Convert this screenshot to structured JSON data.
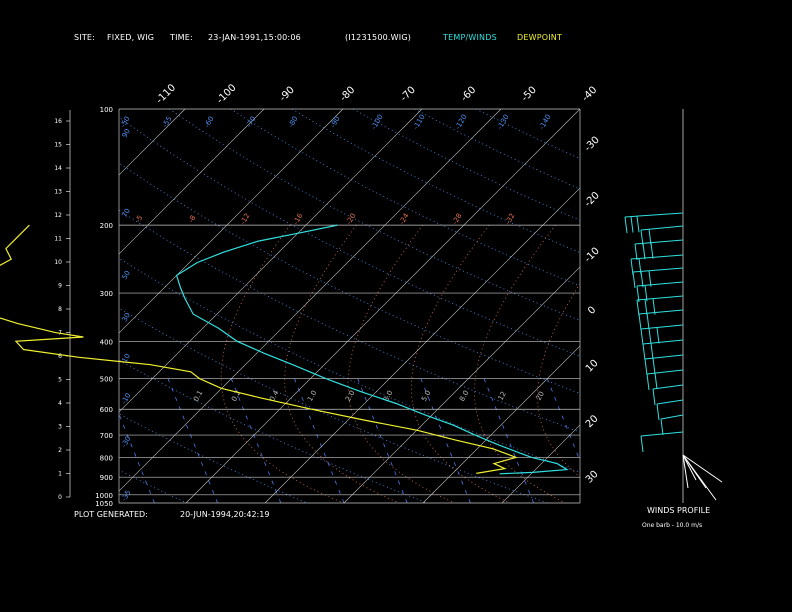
{
  "header": {
    "site_label": "SITE:",
    "site_value": "FIXED, WIG",
    "time_label": "TIME:",
    "time_value": "23-JAN-1991,15:00:06",
    "file": "(I1231500.WIG)",
    "legend_temp": "TEMP/WINDS",
    "legend_dew": "DEWPOINT"
  },
  "footer": {
    "generated_label": "PLOT GENERATED:",
    "generated_value": "20-JUN-1994,20:42:19",
    "winds_title": "WINDS PROFILE",
    "barb_note": "One barb - 10.0 m/s"
  },
  "colors": {
    "temp": "#30e0e0",
    "dew": "#f0f030",
    "grid": "#c8c8c8",
    "isotherm": "#c8c8c8",
    "mixing": "#4a78e8",
    "dry_adiabat": "#5090f0",
    "moist_adiabat": "#e07050"
  },
  "chart_data": {
    "type": "line",
    "pressure_levels": [
      "100",
      "200",
      "300",
      "400",
      "500",
      "600",
      "700",
      "800",
      "900",
      "1000",
      "1050"
    ],
    "pressure_values": [
      100,
      200,
      300,
      400,
      500,
      600,
      700,
      800,
      900,
      1000,
      1050
    ],
    "height_ticks": [
      "0",
      "1",
      "2",
      "3",
      "4",
      "5",
      "6",
      "7",
      "8",
      "9",
      "10",
      "11",
      "12",
      "13",
      "14",
      "15",
      "16"
    ],
    "isotherm_labels_top": [
      "-110",
      "-100",
      "-90",
      "-80",
      "-70",
      "-60",
      "-50",
      "-40"
    ],
    "isotherm_labels_right": [
      "-30",
      "-20",
      "-10",
      "0",
      "10",
      "20",
      "30"
    ],
    "isotherm_values": [
      -110,
      -100,
      -90,
      -80,
      -70,
      -60,
      -50,
      -40,
      -30,
      -20,
      -10,
      0,
      10,
      20,
      30
    ],
    "theta_labels": [
      {
        "text": "90",
        "p": 115
      },
      {
        "text": "70",
        "p": 185
      },
      {
        "text": "50",
        "p": 268
      },
      {
        "text": "30",
        "p": 345
      },
      {
        "text": "10",
        "p": 440
      },
      {
        "text": "-10",
        "p": 560
      },
      {
        "text": "-30",
        "p": 725
      },
      {
        "text": "-35",
        "p": 1000
      }
    ],
    "moist_labels_200": [
      "-5",
      "-8",
      "-12",
      "-16",
      "-20",
      "-24",
      "-28",
      "-32"
    ],
    "mixing_labels_550": [
      "0.1",
      "0.2",
      "0.4",
      "1.0",
      "2.0",
      "3.0",
      "5.0",
      "8.0",
      "12",
      "20"
    ],
    "top_labels_100": [
      "-50",
      "-55",
      "-60",
      "-70",
      "-80",
      "-90",
      "-100",
      "-110",
      "-120",
      "-130",
      "-140"
    ],
    "series": [
      {
        "name": "TEMP/WINDS",
        "points": [
          {
            "p": 200,
            "t": -56
          },
          {
            "p": 210,
            "t": -60
          },
          {
            "p": 220,
            "t": -64
          },
          {
            "p": 235,
            "t": -67
          },
          {
            "p": 250,
            "t": -69
          },
          {
            "p": 270,
            "t": -70
          },
          {
            "p": 290,
            "t": -68
          },
          {
            "p": 310,
            "t": -66
          },
          {
            "p": 340,
            "t": -63
          },
          {
            "p": 370,
            "t": -58
          },
          {
            "p": 400,
            "t": -54
          },
          {
            "p": 430,
            "t": -49
          },
          {
            "p": 460,
            "t": -44
          },
          {
            "p": 500,
            "t": -38
          },
          {
            "p": 540,
            "t": -32
          },
          {
            "p": 580,
            "t": -26
          },
          {
            "p": 620,
            "t": -21
          },
          {
            "p": 660,
            "t": -16
          },
          {
            "p": 700,
            "t": -12
          },
          {
            "p": 740,
            "t": -8
          },
          {
            "p": 780,
            "t": -4
          },
          {
            "p": 800,
            "t": -2
          },
          {
            "p": 830,
            "t": 2
          },
          {
            "p": 860,
            "t": 4
          },
          {
            "p": 875,
            "t": 0
          },
          {
            "p": 882,
            "t": -4
          }
        ]
      },
      {
        "name": "DEWPOINT",
        "points": [
          {
            "p": 200,
            "t": -95
          },
          {
            "p": 215,
            "t": -95
          },
          {
            "p": 230,
            "t": -95
          },
          {
            "p": 245,
            "t": -93
          },
          {
            "p": 260,
            "t": -94
          },
          {
            "p": 280,
            "t": -94
          },
          {
            "p": 300,
            "t": -94
          },
          {
            "p": 320,
            "t": -93
          },
          {
            "p": 340,
            "t": -89
          },
          {
            "p": 360,
            "t": -84
          },
          {
            "p": 380,
            "t": -78
          },
          {
            "p": 390,
            "t": -74
          },
          {
            "p": 400,
            "t": -82
          },
          {
            "p": 420,
            "t": -80
          },
          {
            "p": 440,
            "t": -72
          },
          {
            "p": 460,
            "t": -62
          },
          {
            "p": 480,
            "t": -56
          },
          {
            "p": 500,
            "t": -54
          },
          {
            "p": 530,
            "t": -50
          },
          {
            "p": 560,
            "t": -44
          },
          {
            "p": 600,
            "t": -36
          },
          {
            "p": 640,
            "t": -28
          },
          {
            "p": 680,
            "t": -20
          },
          {
            "p": 720,
            "t": -14
          },
          {
            "p": 760,
            "t": -8
          },
          {
            "p": 800,
            "t": -4
          },
          {
            "p": 830,
            "t": -6
          },
          {
            "p": 855,
            "t": -4
          },
          {
            "p": 880,
            "t": -7
          }
        ]
      }
    ],
    "wind_barbs": [
      {
        "y": 213,
        "len": 58,
        "barbs": [
          -58,
          -52,
          -46
        ]
      },
      {
        "y": 226,
        "len": 42,
        "barbs": [
          -42,
          -34
        ]
      },
      {
        "y": 240,
        "len": 48,
        "barbs": [
          -48,
          -40,
          -32
        ]
      },
      {
        "y": 255,
        "len": 52,
        "barbs": [
          -52,
          -44
        ]
      },
      {
        "y": 268,
        "len": 50,
        "barbs": [
          -50,
          -42,
          -34
        ]
      },
      {
        "y": 282,
        "len": 46,
        "barbs": [
          -46,
          -38
        ]
      },
      {
        "y": 296,
        "len": 46,
        "barbs": [
          -46,
          -38,
          -30
        ]
      },
      {
        "y": 310,
        "len": 44,
        "barbs": [
          -44,
          -36
        ]
      },
      {
        "y": 325,
        "len": 42,
        "barbs": [
          -42,
          -34,
          -26
        ]
      },
      {
        "y": 340,
        "len": 40,
        "barbs": [
          -40,
          -32
        ]
      },
      {
        "y": 355,
        "len": 38,
        "barbs": [
          -38,
          -30
        ]
      },
      {
        "y": 370,
        "len": 36,
        "barbs": [
          -36,
          -28
        ]
      },
      {
        "y": 385,
        "len": 30,
        "barbs": [
          -30
        ]
      },
      {
        "y": 400,
        "len": 26,
        "barbs": [
          -26
        ]
      },
      {
        "y": 415,
        "len": 22,
        "barbs": [
          -22
        ]
      },
      {
        "y": 432,
        "len": 42,
        "barbs": [
          -42
        ]
      }
    ]
  }
}
